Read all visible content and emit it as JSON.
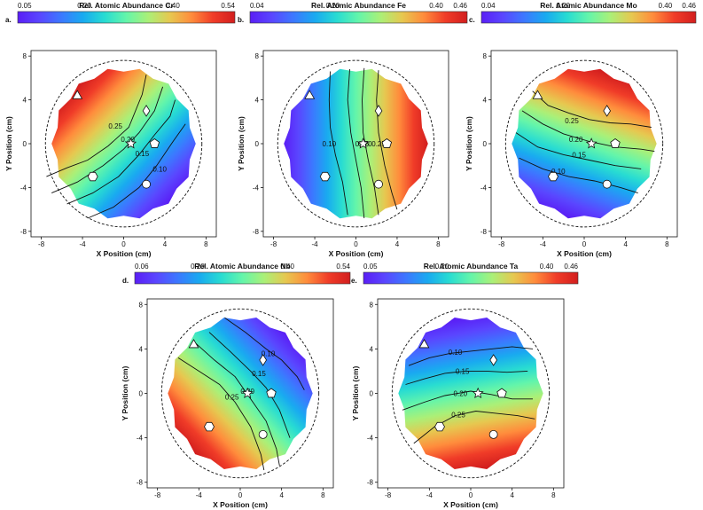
{
  "chart_data": [
    {
      "type": "heatmap",
      "panel_label": "a.",
      "colorbar_title": "Rel. Atomic Abundance Cr",
      "colorbar_ticks": [
        "0.05",
        "0.20",
        "0.40",
        "0.54"
      ],
      "colorbar_tick_values": [
        0.05,
        0.2,
        0.4,
        0.54
      ],
      "colorbar_range": [
        0.05,
        0.54
      ],
      "xlabel": "X Position (cm)",
      "ylabel": "Y Position (cm)",
      "x_ticks": [
        "-8",
        "-4",
        "0",
        "4",
        "8"
      ],
      "y_ticks": [
        "-8",
        "-4",
        "0",
        "4",
        "8"
      ],
      "xlim": [
        -9,
        9
      ],
      "ylim": [
        -8.5,
        8.5
      ],
      "gradient_direction_deg": 135,
      "contours": [
        {
          "label": "0.25",
          "points": [
            [
              -7.5,
              -3.0
            ],
            [
              -5.5,
              -2.2
            ],
            [
              -3.5,
              -1.5
            ],
            [
              -1.5,
              -0.2
            ],
            [
              0.5,
              1.5
            ],
            [
              1.8,
              4.5
            ],
            [
              2.2,
              6.3
            ]
          ]
        },
        {
          "label": "0.20",
          "points": [
            [
              -7.0,
              -4.5
            ],
            [
              -4.5,
              -3.5
            ],
            [
              -2.0,
              -2.0
            ],
            [
              0.0,
              -0.5
            ],
            [
              1.5,
              1.0
            ],
            [
              3.0,
              3.0
            ],
            [
              3.8,
              5.2
            ]
          ]
        },
        {
          "label": "0.15",
          "points": [
            [
              -5.5,
              -5.5
            ],
            [
              -3.0,
              -4.5
            ],
            [
              -0.5,
              -3.0
            ],
            [
              1.5,
              -1.0
            ],
            [
              3.0,
              0.8
            ],
            [
              4.5,
              2.5
            ],
            [
              5.0,
              4.0
            ]
          ]
        },
        {
          "label": "0.10",
          "points": [
            [
              -3.5,
              -6.8
            ],
            [
              -1.0,
              -5.8
            ],
            [
              1.5,
              -4.0
            ],
            [
              3.2,
              -2.0
            ],
            [
              4.8,
              0.2
            ],
            [
              6.0,
              1.8
            ]
          ]
        }
      ],
      "contour_label_positions": [
        [
          -0.8,
          1.6
        ],
        [
          0.4,
          0.4
        ],
        [
          1.8,
          -0.9
        ],
        [
          3.5,
          -2.3
        ]
      ],
      "markers": [
        {
          "shape": "triangle",
          "x": -4.5,
          "y": 4.4
        },
        {
          "shape": "diamond",
          "x": 2.2,
          "y": 3.0
        },
        {
          "shape": "star",
          "x": 0.7,
          "y": 0.0
        },
        {
          "shape": "pentagon",
          "x": 3.0,
          "y": 0.0
        },
        {
          "shape": "hexagon",
          "x": -3.0,
          "y": -3.0
        },
        {
          "shape": "circle",
          "x": 2.2,
          "y": -3.7
        }
      ]
    },
    {
      "type": "heatmap",
      "panel_label": "b.",
      "colorbar_title": "Rel. Atomic Abundance Fe",
      "colorbar_ticks": [
        "0.04",
        "0.20",
        "0.40",
        "0.46"
      ],
      "colorbar_tick_values": [
        0.04,
        0.2,
        0.4,
        0.46
      ],
      "colorbar_range": [
        0.04,
        0.46
      ],
      "xlabel": "X Position (cm)",
      "ylabel": "Y Position (cm)",
      "x_ticks": [
        "-8",
        "-4",
        "0",
        "4",
        "8"
      ],
      "y_ticks": [
        "-8",
        "-4",
        "0",
        "4",
        "8"
      ],
      "xlim": [
        -9,
        9
      ],
      "ylim": [
        -8.5,
        8.5
      ],
      "gradient_direction_deg": 0,
      "contours": [
        {
          "label": "0.10",
          "points": [
            [
              -2.5,
              6.6
            ],
            [
              -2.6,
              4.0
            ],
            [
              -2.5,
              1.5
            ],
            [
              -2.0,
              -1.0
            ],
            [
              -1.3,
              -3.5
            ],
            [
              -0.8,
              -6.5
            ]
          ]
        },
        {
          "label": "0.15",
          "points": [
            [
              -0.6,
              6.8
            ],
            [
              -0.8,
              4.0
            ],
            [
              -0.5,
              1.0
            ],
            [
              0.0,
              -1.5
            ],
            [
              0.5,
              -4.0
            ],
            [
              0.8,
              -6.8
            ]
          ]
        },
        {
          "label": "0.20",
          "points": [
            [
              0.8,
              6.9
            ],
            [
              0.6,
              4.0
            ],
            [
              0.7,
              1.0
            ],
            [
              1.2,
              -1.5
            ],
            [
              1.8,
              -4.0
            ],
            [
              2.2,
              -6.5
            ]
          ]
        },
        {
          "label": "0.25",
          "points": [
            [
              2.2,
              6.7
            ],
            [
              2.0,
              4.0
            ],
            [
              2.2,
              1.0
            ],
            [
              2.8,
              -2.0
            ],
            [
              3.5,
              -4.5
            ],
            [
              4.0,
              -6.0
            ]
          ]
        }
      ],
      "contour_label_positions": [
        [
          -2.6,
          0.0
        ],
        [
          0.6,
          0.0
        ],
        [
          0.9,
          0.0
        ],
        [
          2.2,
          0.0
        ]
      ],
      "markers": [
        {
          "shape": "triangle",
          "x": -4.5,
          "y": 4.4
        },
        {
          "shape": "diamond",
          "x": 2.2,
          "y": 3.0
        },
        {
          "shape": "star",
          "x": 0.7,
          "y": 0.0
        },
        {
          "shape": "pentagon",
          "x": 3.0,
          "y": 0.0
        },
        {
          "shape": "hexagon",
          "x": -3.0,
          "y": -3.0
        },
        {
          "shape": "circle",
          "x": 2.2,
          "y": -3.7
        }
      ]
    },
    {
      "type": "heatmap",
      "panel_label": "c.",
      "colorbar_title": "Rel. Atomic Abundance Mo",
      "colorbar_ticks": [
        "0.04",
        "0.20",
        "0.40",
        "0.46"
      ],
      "colorbar_tick_values": [
        0.04,
        0.2,
        0.4,
        0.46
      ],
      "colorbar_range": [
        0.04,
        0.46
      ],
      "xlabel": "X Position (cm)",
      "ylabel": "Y Position (cm)",
      "x_ticks": [
        "-8",
        "-4",
        "0",
        "4",
        "8"
      ],
      "y_ticks": [
        "-8",
        "-4",
        "0",
        "4",
        "8"
      ],
      "xlim": [
        -9,
        9
      ],
      "ylim": [
        -8.5,
        8.5
      ],
      "gradient_direction_deg": 70,
      "contours": [
        {
          "label": "0.25",
          "points": [
            [
              -5.0,
              4.8
            ],
            [
              -3.5,
              3.5
            ],
            [
              -1.5,
              2.8
            ],
            [
              0.5,
              2.2
            ],
            [
              2.5,
              1.9
            ],
            [
              4.5,
              1.8
            ],
            [
              6.5,
              1.5
            ]
          ]
        },
        {
          "label": "0.20",
          "points": [
            [
              -6.0,
              3.0
            ],
            [
              -4.0,
              1.8
            ],
            [
              -2.0,
              0.9
            ],
            [
              0.5,
              0.2
            ],
            [
              3.0,
              -0.3
            ],
            [
              5.5,
              -0.5
            ],
            [
              6.8,
              -0.7
            ]
          ]
        },
        {
          "label": "0.15",
          "points": [
            [
              -6.6,
              1.0
            ],
            [
              -4.5,
              -0.3
            ],
            [
              -2.0,
              -1.0
            ],
            [
              0.5,
              -1.5
            ],
            [
              3.0,
              -2.0
            ],
            [
              5.5,
              -2.3
            ]
          ]
        },
        {
          "label": "0.10",
          "points": [
            [
              -6.3,
              -1.3
            ],
            [
              -4.0,
              -2.3
            ],
            [
              -1.5,
              -3.0
            ],
            [
              1.0,
              -3.4
            ],
            [
              3.5,
              -4.0
            ],
            [
              5.2,
              -4.5
            ]
          ]
        }
      ],
      "contour_label_positions": [
        [
          -1.2,
          2.1
        ],
        [
          -0.8,
          0.4
        ],
        [
          -0.5,
          -1.0
        ],
        [
          -2.5,
          -2.5
        ]
      ],
      "markers": [
        {
          "shape": "triangle",
          "x": -4.5,
          "y": 4.4
        },
        {
          "shape": "diamond",
          "x": 2.2,
          "y": 3.0
        },
        {
          "shape": "star",
          "x": 0.7,
          "y": 0.0
        },
        {
          "shape": "pentagon",
          "x": 3.0,
          "y": 0.0
        },
        {
          "shape": "hexagon",
          "x": -3.0,
          "y": -3.0
        },
        {
          "shape": "circle",
          "x": 2.2,
          "y": -3.7
        }
      ]
    },
    {
      "type": "heatmap",
      "panel_label": "d.",
      "colorbar_title": "Rel. Atomic Abundance Nb",
      "colorbar_ticks": [
        "0.06",
        "0.20",
        "0.40",
        "0.54"
      ],
      "colorbar_tick_values": [
        0.06,
        0.2,
        0.4,
        0.54
      ],
      "colorbar_range": [
        0.06,
        0.54
      ],
      "xlabel": "X Position (cm)",
      "ylabel": "Y Position (cm)",
      "x_ticks": [
        "-8",
        "-4",
        "0",
        "4",
        "8"
      ],
      "y_ticks": [
        "-8",
        "-4",
        "0",
        "4",
        "8"
      ],
      "xlim": [
        -9,
        9
      ],
      "ylim": [
        -8.5,
        8.5
      ],
      "gradient_direction_deg": 225,
      "contours": [
        {
          "label": "0.10",
          "points": [
            [
              -1.5,
              6.8
            ],
            [
              0.5,
              5.5
            ],
            [
              2.5,
              4.0
            ],
            [
              4.0,
              3.0
            ],
            [
              5.5,
              1.5
            ],
            [
              6.2,
              0.3
            ]
          ]
        },
        {
          "label": "0.15",
          "points": [
            [
              -3.0,
              5.5
            ],
            [
              -1.0,
              3.8
            ],
            [
              1.0,
              2.0
            ],
            [
              2.5,
              0.5
            ],
            [
              3.8,
              -1.5
            ],
            [
              4.8,
              -4.0
            ]
          ]
        },
        {
          "label": "0.20",
          "points": [
            [
              -4.3,
              4.5
            ],
            [
              -2.5,
              3.0
            ],
            [
              -0.5,
              1.5
            ],
            [
              1.0,
              -0.5
            ],
            [
              2.5,
              -2.5
            ],
            [
              3.5,
              -5.0
            ],
            [
              3.8,
              -6.5
            ]
          ]
        },
        {
          "label": "0.25",
          "points": [
            [
              -6.0,
              3.2
            ],
            [
              -4.0,
              2.0
            ],
            [
              -2.0,
              0.8
            ],
            [
              -0.5,
              -0.8
            ],
            [
              1.0,
              -3.0
            ],
            [
              2.0,
              -5.5
            ],
            [
              2.3,
              -6.9
            ]
          ]
        }
      ],
      "contour_label_positions": [
        [
          2.7,
          3.6
        ],
        [
          1.8,
          1.8
        ],
        [
          0.7,
          0.2
        ],
        [
          -0.8,
          -0.3
        ]
      ],
      "markers": [
        {
          "shape": "triangle",
          "x": -4.5,
          "y": 4.4
        },
        {
          "shape": "diamond",
          "x": 2.2,
          "y": 3.0
        },
        {
          "shape": "star",
          "x": 0.7,
          "y": 0.0
        },
        {
          "shape": "pentagon",
          "x": 3.0,
          "y": 0.0
        },
        {
          "shape": "hexagon",
          "x": -3.0,
          "y": -3.0
        },
        {
          "shape": "circle",
          "x": 2.2,
          "y": -3.7
        }
      ]
    },
    {
      "type": "heatmap",
      "panel_label": "e.",
      "colorbar_title": "Rel. Atomic Abundance Ta",
      "colorbar_ticks": [
        "0.05",
        "0.20",
        "0.40",
        "0.46"
      ],
      "colorbar_tick_values": [
        0.05,
        0.2,
        0.4,
        0.46
      ],
      "colorbar_range": [
        0.05,
        0.46
      ],
      "xlabel": "X Position (cm)",
      "ylabel": "Y Position (cm)",
      "x_ticks": [
        "-8",
        "-4",
        "0",
        "4",
        "8"
      ],
      "y_ticks": [
        "-8",
        "-4",
        "0",
        "4",
        "8"
      ],
      "xlim": [
        -9,
        9
      ],
      "ylim": [
        -8.5,
        8.5
      ],
      "gradient_direction_deg": 280,
      "contours": [
        {
          "label": "0.10",
          "points": [
            [
              -6.0,
              2.5
            ],
            [
              -4.0,
              3.2
            ],
            [
              -2.0,
              3.6
            ],
            [
              0.0,
              3.8
            ],
            [
              2.0,
              4.0
            ],
            [
              4.0,
              4.2
            ],
            [
              6.0,
              4.0
            ]
          ]
        },
        {
          "label": "0.15",
          "points": [
            [
              -6.3,
              0.8
            ],
            [
              -4.5,
              1.3
            ],
            [
              -2.5,
              1.8
            ],
            [
              -0.5,
              2.0
            ],
            [
              1.5,
              2.0
            ],
            [
              3.5,
              1.9
            ],
            [
              5.5,
              2.0
            ]
          ]
        },
        {
          "label": "0.20",
          "points": [
            [
              -6.6,
              -1.5
            ],
            [
              -4.5,
              -0.8
            ],
            [
              -2.5,
              -0.2
            ],
            [
              0.0,
              0.2
            ],
            [
              2.0,
              -0.1
            ],
            [
              4.0,
              -0.5
            ],
            [
              6.0,
              -0.5
            ]
          ]
        },
        {
          "label": "0.25",
          "points": [
            [
              -5.5,
              -4.5
            ],
            [
              -3.5,
              -3.0
            ],
            [
              -1.5,
              -2.0
            ],
            [
              0.5,
              -1.6
            ],
            [
              2.5,
              -1.8
            ],
            [
              4.5,
              -2.0
            ],
            [
              6.2,
              -2.3
            ]
          ]
        }
      ],
      "contour_label_positions": [
        [
          -1.5,
          3.7
        ],
        [
          -0.8,
          2.0
        ],
        [
          -1.0,
          0.0
        ],
        [
          -1.2,
          -1.9
        ]
      ],
      "markers": [
        {
          "shape": "triangle",
          "x": -4.5,
          "y": 4.4
        },
        {
          "shape": "diamond",
          "x": 2.2,
          "y": 3.0
        },
        {
          "shape": "star",
          "x": 0.7,
          "y": 0.0
        },
        {
          "shape": "pentagon",
          "x": 3.0,
          "y": 0.0
        },
        {
          "shape": "hexagon",
          "x": -3.0,
          "y": -3.0
        },
        {
          "shape": "circle",
          "x": 2.2,
          "y": -3.7
        }
      ]
    }
  ],
  "colormap": [
    "#5a1ef5",
    "#5a46ff",
    "#3c78ff",
    "#19aaf0",
    "#28dcd2",
    "#64f5aa",
    "#aaf078",
    "#e6c850",
    "#ff8c3c",
    "#f03c28",
    "#d21e1e"
  ]
}
